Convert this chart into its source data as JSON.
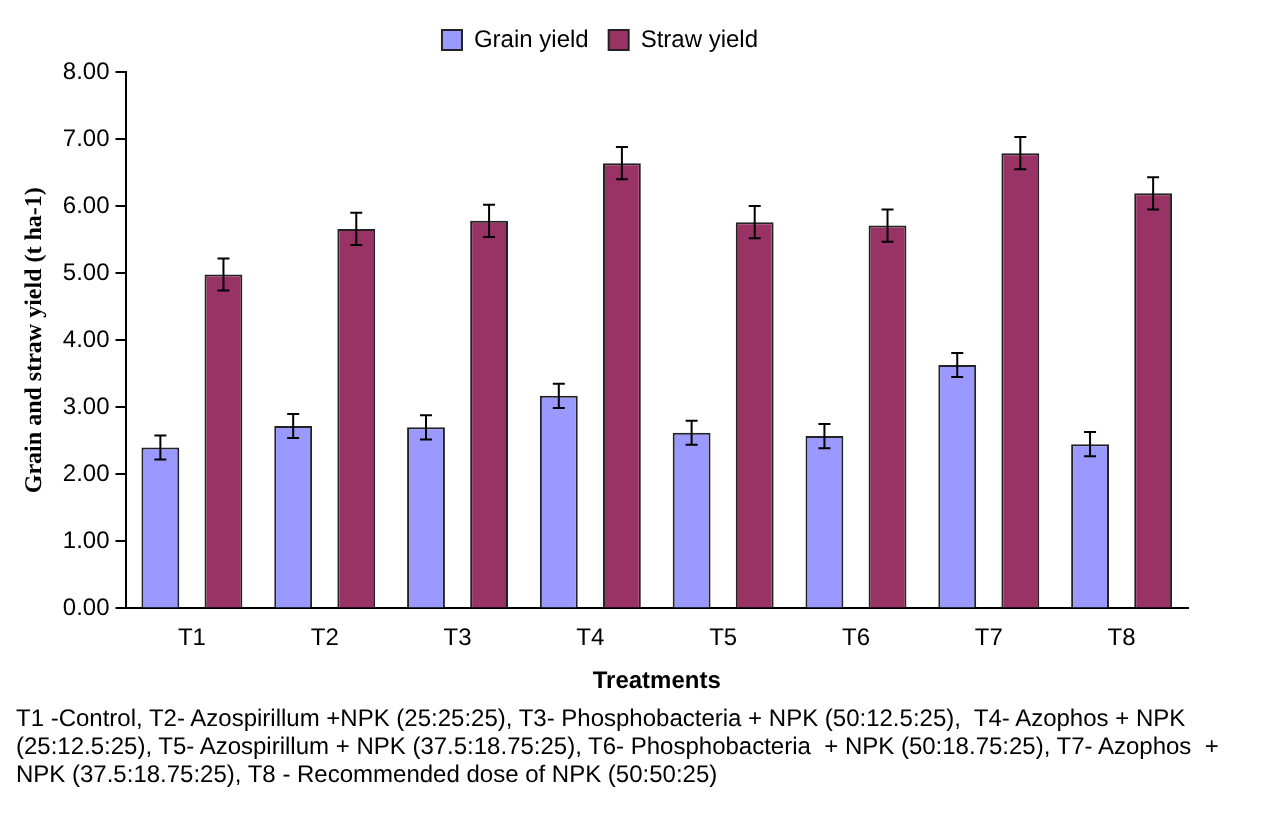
{
  "chart_data": {
    "type": "bar",
    "xlabel": "Treatments",
    "ylabel": "Grain and straw yield (t ha-1)",
    "categories": [
      "T1",
      "T2",
      "T3",
      "T4",
      "T5",
      "T6",
      "T7",
      "T8"
    ],
    "series": [
      {
        "name": "Grain yield",
        "color": "#9999ff",
        "values": [
          2.4,
          2.72,
          2.7,
          3.17,
          2.62,
          2.57,
          3.63,
          2.45
        ],
        "errors": [
          0.18,
          0.18,
          0.18,
          0.18,
          0.18,
          0.18,
          0.18,
          0.18
        ]
      },
      {
        "name": "Straw yield",
        "color": "#993366",
        "values": [
          4.98,
          5.66,
          5.78,
          6.64,
          5.76,
          5.71,
          6.79,
          6.19
        ],
        "errors": [
          0.24,
          0.24,
          0.24,
          0.24,
          0.24,
          0.24,
          0.24,
          0.24
        ]
      }
    ],
    "ylim": [
      0,
      8
    ],
    "yticks": [
      {
        "value": 0,
        "label": "0.00"
      },
      {
        "value": 1,
        "label": "1.00"
      },
      {
        "value": 2,
        "label": "2.00"
      },
      {
        "value": 3,
        "label": "3.00"
      },
      {
        "value": 4,
        "label": "4.00"
      },
      {
        "value": 5,
        "label": "5.00"
      },
      {
        "value": 6,
        "label": "6.00"
      },
      {
        "value": 7,
        "label": "7.00"
      },
      {
        "value": 8,
        "label": "8.00"
      }
    ],
    "grid": false,
    "legend": "top",
    "annotations": [
      "T1 -Control, T2- Azospirillum +NPK (25:25:25), T3- Phosphobacteria + NPK (50:12.5:25),  T4- Azophos + NPK (25:12.5:25), T5- Azospirillum + NPK (37.5:18.75:25), T6- Phosphobacteria  + NPK (50:18.75:25), T7- Azophos  + NPK (37.5:18.75:25), T8 - Recommended dose of NPK (50:50:25)"
    ]
  }
}
